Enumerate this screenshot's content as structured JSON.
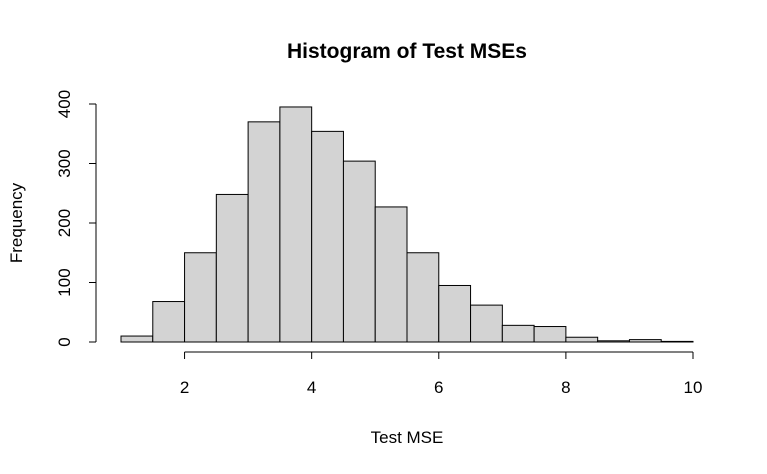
{
  "chart_data": {
    "type": "bar",
    "subtype": "histogram",
    "title": "Histogram of Test MSEs",
    "xlabel": "Test MSE",
    "ylabel": "Frequency",
    "xlim": [
      1,
      10
    ],
    "ylim": [
      0,
      400
    ],
    "xticks": [
      2,
      4,
      6,
      8,
      10
    ],
    "yticks": [
      0,
      100,
      200,
      300,
      400
    ],
    "bin_width": 0.5,
    "bins": [
      {
        "start": 1.0,
        "end": 1.5,
        "count": 10
      },
      {
        "start": 1.5,
        "end": 2.0,
        "count": 68
      },
      {
        "start": 2.0,
        "end": 2.5,
        "count": 150
      },
      {
        "start": 2.5,
        "end": 3.0,
        "count": 248
      },
      {
        "start": 3.0,
        "end": 3.5,
        "count": 370
      },
      {
        "start": 3.5,
        "end": 4.0,
        "count": 395
      },
      {
        "start": 4.0,
        "end": 4.5,
        "count": 354
      },
      {
        "start": 4.5,
        "end": 5.0,
        "count": 304
      },
      {
        "start": 5.0,
        "end": 5.5,
        "count": 227
      },
      {
        "start": 5.5,
        "end": 6.0,
        "count": 150
      },
      {
        "start": 6.0,
        "end": 6.5,
        "count": 95
      },
      {
        "start": 6.5,
        "end": 7.0,
        "count": 62
      },
      {
        "start": 7.0,
        "end": 7.5,
        "count": 28
      },
      {
        "start": 7.5,
        "end": 8.0,
        "count": 26
      },
      {
        "start": 8.0,
        "end": 8.5,
        "count": 8
      },
      {
        "start": 8.5,
        "end": 9.0,
        "count": 2
      },
      {
        "start": 9.0,
        "end": 9.5,
        "count": 4
      },
      {
        "start": 9.5,
        "end": 10.0,
        "count": 1
      }
    ],
    "bar_fill": "#d3d3d3",
    "bar_stroke": "#000000",
    "grid": false,
    "legend": "none"
  }
}
